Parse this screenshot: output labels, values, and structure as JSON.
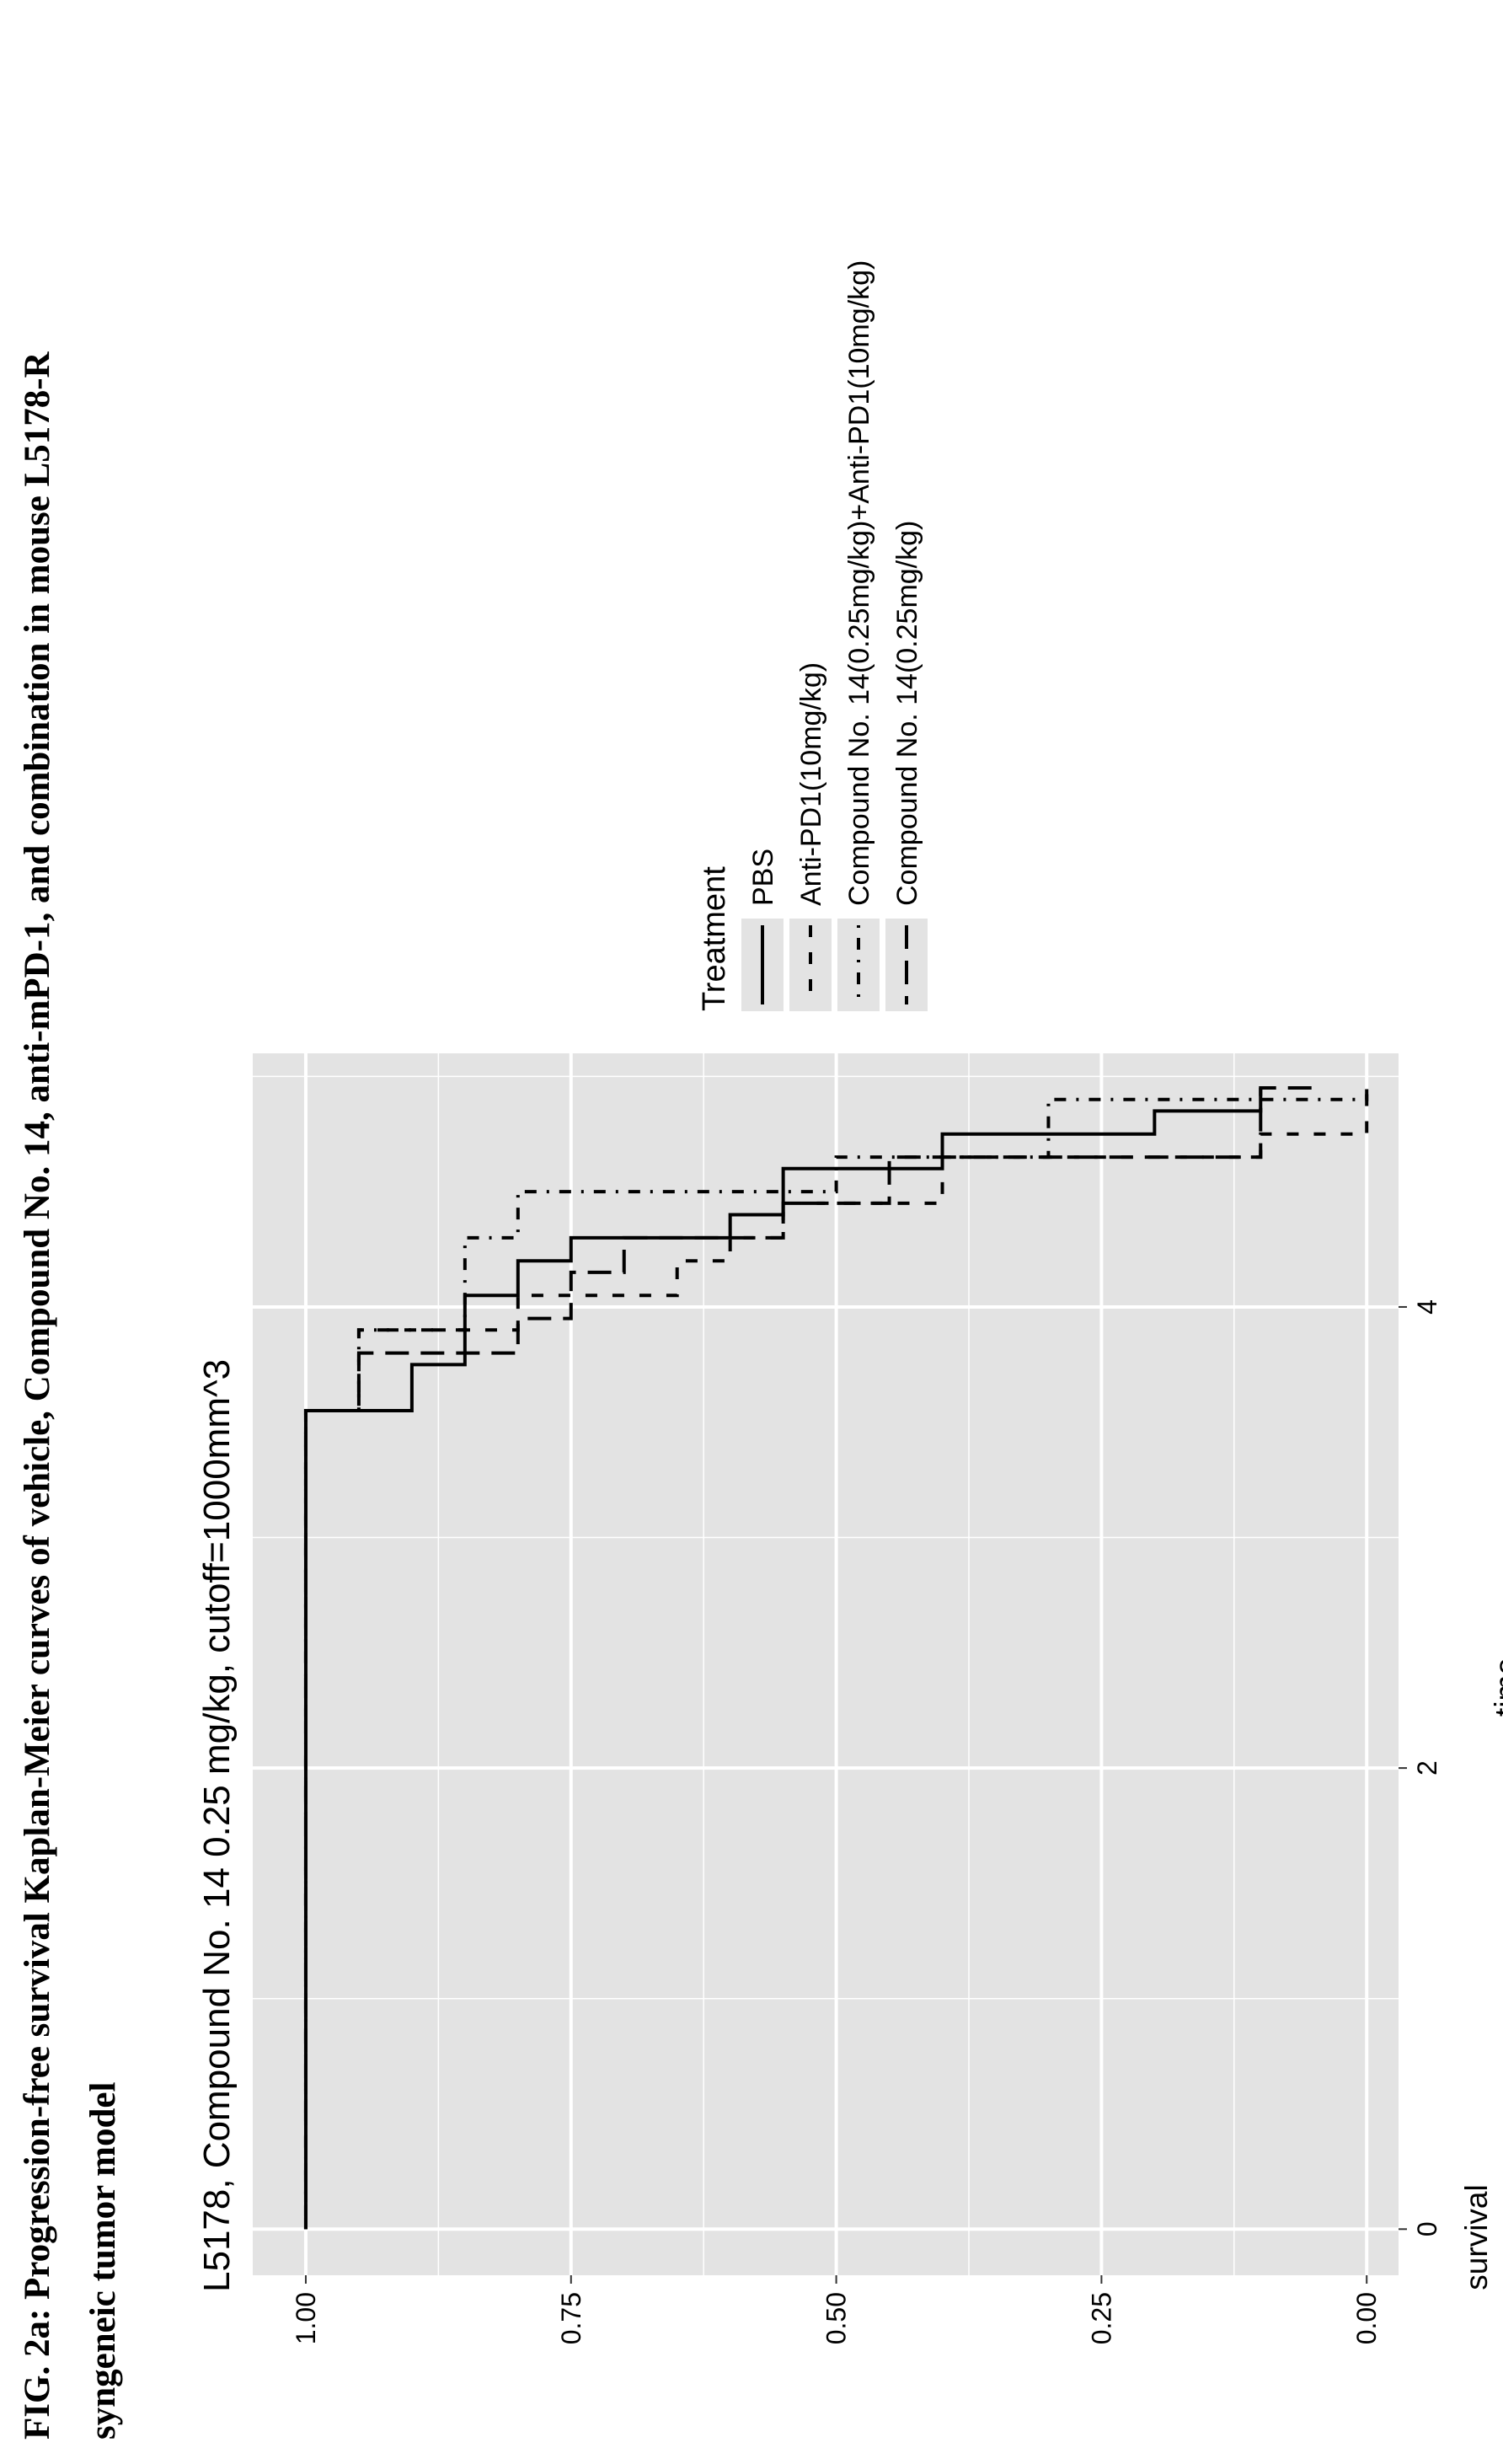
{
  "caption": {
    "line1": "FIG. 2a: Progression-free survival Kaplan-Meier curves of vehicle, Compound No. 14, anti-mPD-1, and combination in mouse L5178-R",
    "line2": "syngeneic tumor model"
  },
  "colors": {
    "panel_background": "#e3e3e3",
    "grid": "#ffffff",
    "curve": "#000000"
  },
  "chart_data": {
    "type": "line",
    "subtype": "kaplan-meier step curves",
    "orientation": "page rotated 90 degrees counter-clockwise",
    "title": "L5178, Compound No. 14 0.25 mg/kg, cutoff=1000mm^3",
    "xlabel": "time",
    "ylabel": "survival",
    "x_ticks": [
      "0",
      "2",
      "4"
    ],
    "y_ticks": [
      "0.00",
      "0.25",
      "0.50",
      "0.75",
      "1.00"
    ],
    "xlim": [
      -0.2,
      5.1
    ],
    "ylim": [
      -0.03,
      1.05
    ],
    "grid": true,
    "legend_title": "Treatment",
    "legend_position": "right",
    "series": [
      {
        "name": "PBS",
        "line_style": "solid",
        "x": [
          0,
          3.55,
          3.75,
          4.05,
          4.2,
          4.3,
          4.4,
          4.6,
          4.75,
          4.85,
          4.95
        ],
        "y": [
          1.0,
          0.9,
          0.85,
          0.8,
          0.75,
          0.6,
          0.55,
          0.4,
          0.2,
          0.1,
          0.1
        ]
      },
      {
        "name": "Anti-PD1(10mg/kg)",
        "line_style": "dashed",
        "x": [
          0,
          3.55,
          3.9,
          4.05,
          4.2,
          4.3,
          4.45,
          4.65,
          4.75,
          4.95
        ],
        "y": [
          1.0,
          0.95,
          0.8,
          0.65,
          0.6,
          0.55,
          0.4,
          0.1,
          0.0,
          0.0
        ]
      },
      {
        "name": "Compound No. 14(0.25mg/kg)+Anti-PD1(10mg/kg)",
        "line_style": "dot-dash",
        "x": [
          0,
          3.55,
          3.9,
          4.3,
          4.5,
          4.65,
          4.8,
          4.9,
          4.95
        ],
        "y": [
          1.0,
          0.95,
          0.85,
          0.8,
          0.5,
          0.3,
          0.3,
          0.0,
          0.0
        ]
      },
      {
        "name": "Compound No. 14(0.25mg/kg)",
        "line_style": "long-dash",
        "x": [
          0,
          3.55,
          3.8,
          3.95,
          4.15,
          4.3,
          4.45,
          4.65,
          4.95
        ],
        "y": [
          1.0,
          0.95,
          0.8,
          0.75,
          0.7,
          0.55,
          0.45,
          0.1,
          0.05
        ]
      }
    ]
  }
}
